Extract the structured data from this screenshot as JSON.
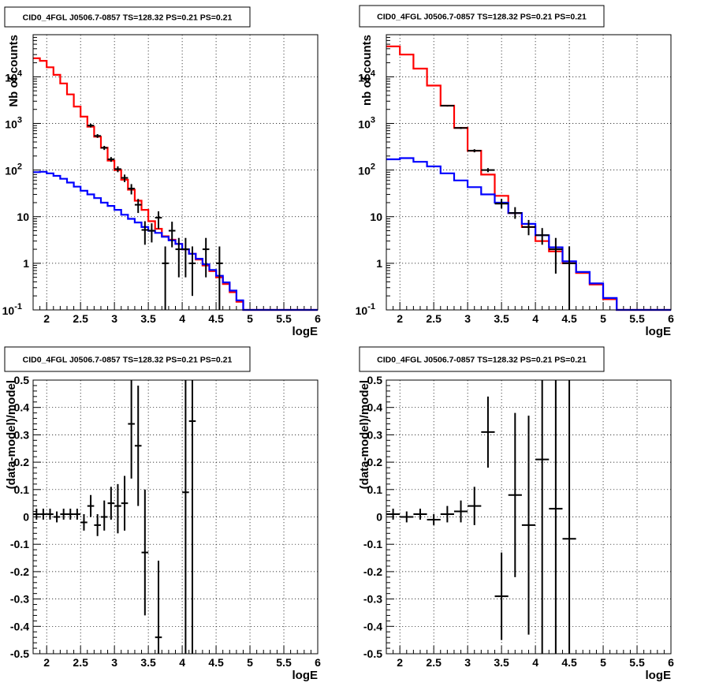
{
  "chart_data": [
    {
      "type": "line",
      "title": "CID0_4FGL J0506.7-0857 TS=128.32 PS=0.21 PS=0.21",
      "xlabel": "logE",
      "ylabel": "Nb of counts",
      "xlim": [
        1.8,
        6.0
      ],
      "ylim": [
        0.1,
        80000
      ],
      "yscale": "log",
      "grid": true,
      "xticks": [
        "2",
        "2.5",
        "3",
        "3.5",
        "4",
        "4.5",
        "5",
        "5.5",
        "6"
      ],
      "yticks": [
        "10^{-1}",
        "1",
        "10",
        "10^{2}",
        "10^{3}",
        "10^{4}"
      ],
      "series": [
        {
          "kind": "step",
          "color": "#ff0000",
          "edges": [
            1.8,
            1.9,
            2.0,
            2.1,
            2.2,
            2.3,
            2.4,
            2.5,
            2.6,
            2.7,
            2.8,
            2.9,
            3.0,
            3.1,
            3.2,
            3.3,
            3.4,
            3.5,
            3.6,
            3.7,
            3.8,
            3.9,
            4.0,
            4.1,
            4.2,
            4.3,
            4.4,
            4.5,
            4.6,
            4.7,
            4.8,
            4.9,
            5.0,
            5.1,
            5.2,
            5.3,
            5.4,
            5.5,
            5.6,
            5.7,
            5.8,
            5.9,
            6.0
          ],
          "values": [
            25000,
            22000,
            16000,
            11000,
            7200,
            4200,
            2300,
            1400,
            850,
            520,
            300,
            160,
            100,
            62,
            38,
            22,
            14,
            8,
            5.5,
            3.8,
            3.2,
            2.6,
            2.0,
            1.6,
            1.2,
            0.9,
            0.68,
            0.5,
            0.36,
            0.24,
            0.15,
            0.1,
            0.1,
            0.1,
            0.1,
            0.1,
            0.1,
            0.1,
            0.1,
            0.1,
            0.1,
            0.1
          ]
        },
        {
          "kind": "step",
          "color": "#0000ff",
          "edges": [
            1.8,
            1.9,
            2.0,
            2.1,
            2.2,
            2.3,
            2.4,
            2.5,
            2.6,
            2.7,
            2.8,
            2.9,
            3.0,
            3.1,
            3.2,
            3.3,
            3.4,
            3.5,
            3.6,
            3.7,
            3.8,
            3.9,
            4.0,
            4.1,
            4.2,
            4.3,
            4.4,
            4.5,
            4.6,
            4.7,
            4.8,
            4.9,
            5.0,
            5.1,
            5.2,
            5.3,
            5.4,
            5.5,
            5.6,
            5.7,
            5.8,
            5.9,
            6.0
          ],
          "values": [
            90,
            92,
            85,
            75,
            65,
            54,
            44,
            36,
            30,
            25,
            20,
            17,
            14,
            11,
            9,
            7.5,
            6,
            5,
            4.5,
            3.7,
            3.1,
            2.6,
            2.0,
            1.6,
            1.25,
            0.95,
            0.72,
            0.54,
            0.39,
            0.26,
            0.16,
            0.1,
            0.1,
            0.1,
            0.1,
            0.1,
            0.1,
            0.1,
            0.1,
            0.1,
            0.1,
            0.1
          ]
        },
        {
          "kind": "points",
          "color": "#000000",
          "x": [
            2.65,
            2.75,
            2.85,
            2.95,
            3.05,
            3.15,
            3.25,
            3.35,
            3.45,
            3.55,
            3.65,
            3.75,
            3.85,
            3.95,
            4.05,
            4.15,
            4.35,
            4.55
          ],
          "xerr": 0.05,
          "y": [
            900,
            540,
            300,
            170,
            105,
            68,
            40,
            18,
            5.2,
            5.0,
            9.5,
            1.0,
            5.0,
            2.0,
            2.0,
            1.0,
            2.0,
            1.0
          ],
          "ylo": [
            820,
            490,
            270,
            150,
            90,
            55,
            30,
            12,
            2.5,
            2.8,
            5.5,
            0.1,
            2.2,
            0.5,
            0.5,
            0.2,
            0.5,
            0.1
          ],
          "yhi": [
            980,
            590,
            330,
            190,
            120,
            80,
            50,
            24,
            8,
            7.2,
            13,
            2.3,
            7.8,
            3.5,
            3.5,
            2.3,
            3.5,
            2.3
          ]
        }
      ]
    },
    {
      "type": "line",
      "title": "CID0_4FGL J0506.7-0857 TS=128.32 PS=0.21 PS=0.21",
      "xlabel": "logE",
      "ylabel": "nb of counts",
      "xlim": [
        1.8,
        6.0
      ],
      "ylim": [
        0.1,
        80000
      ],
      "yscale": "log",
      "grid": true,
      "xticks": [
        "2",
        "2.5",
        "3",
        "3.5",
        "4",
        "4.5",
        "5",
        "5.5",
        "6"
      ],
      "yticks": [
        "10^{-1}",
        "1",
        "10",
        "10^{2}",
        "10^{3}",
        "10^{4}"
      ],
      "series": [
        {
          "kind": "step",
          "color": "#ff0000",
          "edges": [
            1.8,
            2.0,
            2.2,
            2.4,
            2.6,
            2.8,
            3.0,
            3.2,
            3.4,
            3.6,
            3.8,
            4.0,
            4.2,
            4.4,
            4.6,
            4.8,
            5.0,
            5.2,
            5.4,
            5.6,
            5.8,
            6.0
          ],
          "values": [
            45000,
            30000,
            15000,
            6500,
            2400,
            800,
            260,
            80,
            28,
            12,
            6,
            3,
            1.8,
            1.0,
            0.62,
            0.35,
            0.17,
            0.1,
            0.1,
            0.1,
            0.1
          ],
          "ylabel_unused": ""
        },
        {
          "kind": "step",
          "color": "#0000ff",
          "edges": [
            1.8,
            2.0,
            2.2,
            2.4,
            2.6,
            2.8,
            3.0,
            3.2,
            3.4,
            3.6,
            3.8,
            4.0,
            4.2,
            4.4,
            4.6,
            4.8,
            5.0,
            5.2,
            5.4,
            5.6,
            5.8,
            6.0
          ],
          "values": [
            170,
            180,
            150,
            120,
            85,
            60,
            43,
            30,
            20,
            12,
            7,
            4,
            2.2,
            1.1,
            0.65,
            0.37,
            0.18,
            0.1,
            0.1,
            0.1,
            0.1
          ]
        },
        {
          "kind": "points",
          "color": "#000000",
          "x": [
            2.7,
            2.9,
            3.1,
            3.3,
            3.5,
            3.7,
            3.9,
            4.1,
            4.3,
            4.5
          ],
          "xerr": 0.1,
          "y": [
            2400,
            800,
            260,
            100,
            19,
            12,
            6,
            4,
            2,
            1.0
          ],
          "ylo": [
            2300,
            760,
            240,
            90,
            15,
            9,
            4,
            2.5,
            0.6,
            0.1
          ],
          "yhi": [
            2500,
            840,
            280,
            110,
            24,
            16,
            8.5,
            5.7,
            3.5,
            2.3
          ]
        }
      ]
    },
    {
      "type": "scatter",
      "title": "CID0_4FGL J0506.7-0857 TS=128.32 PS=0.21 PS=0.21",
      "xlabel": "logE",
      "ylabel": "(data-model)/model",
      "xlim": [
        1.8,
        6.0
      ],
      "ylim": [
        -0.5,
        0.5
      ],
      "grid": true,
      "xticks": [
        "2",
        "2.5",
        "3",
        "3.5",
        "4",
        "4.5",
        "5",
        "5.5",
        "6"
      ],
      "yticks": [
        "-0.5",
        "-0.4",
        "-0.3",
        "-0.2",
        "-0.1",
        "0",
        "0.1",
        "0.2",
        "0.3",
        "0.4",
        "0.5"
      ],
      "series": [
        {
          "kind": "points",
          "color": "#000000",
          "x": [
            1.85,
            1.95,
            2.05,
            2.15,
            2.25,
            2.35,
            2.45,
            2.55,
            2.65,
            2.75,
            2.85,
            2.95,
            3.05,
            3.15,
            3.25,
            3.35,
            3.45,
            3.65,
            4.05,
            4.15
          ],
          "xerr": 0.05,
          "y": [
            0.01,
            0.01,
            0.01,
            0.0,
            0.01,
            0.01,
            0.01,
            -0.02,
            0.04,
            -0.03,
            0.0,
            0.05,
            0.04,
            0.05,
            0.34,
            0.26,
            -0.13,
            -0.44,
            0.09,
            0.35
          ],
          "ylo": [
            -0.01,
            -0.01,
            -0.01,
            -0.02,
            -0.01,
            -0.01,
            -0.01,
            -0.05,
            0.0,
            -0.07,
            -0.05,
            -0.01,
            -0.06,
            -0.05,
            0.14,
            0.04,
            -0.36,
            -0.72,
            -0.6,
            -0.6
          ],
          "yhi": [
            0.03,
            0.03,
            0.03,
            0.02,
            0.03,
            0.03,
            0.03,
            0.01,
            0.08,
            0.01,
            0.06,
            0.11,
            0.12,
            0.15,
            0.55,
            0.48,
            0.1,
            -0.16,
            0.6,
            0.6
          ]
        }
      ]
    },
    {
      "type": "scatter",
      "title": "CID0_4FGL J0506.7-0857 TS=128.32 PS=0.21 PS=0.21",
      "xlabel": "logE",
      "ylabel": "(data-model)/model",
      "xlim": [
        1.8,
        6.0
      ],
      "ylim": [
        -0.5,
        0.5
      ],
      "grid": true,
      "xticks": [
        "2",
        "2.5",
        "3",
        "3.5",
        "4",
        "4.5",
        "5",
        "5.5",
        "6"
      ],
      "yticks": [
        "-0.5",
        "-0.4",
        "-0.3",
        "-0.2",
        "-0.1",
        "0",
        "0.1",
        "0.2",
        "0.3",
        "0.4",
        "0.5"
      ],
      "series": [
        {
          "kind": "points",
          "color": "#000000",
          "x": [
            1.9,
            2.1,
            2.3,
            2.5,
            2.7,
            2.9,
            3.1,
            3.3,
            3.5,
            3.7,
            3.9,
            4.1,
            4.3,
            4.5
          ],
          "xerr": 0.1,
          "y": [
            0.01,
            0.0,
            0.01,
            -0.01,
            0.01,
            0.02,
            0.04,
            0.31,
            -0.29,
            0.08,
            -0.03,
            0.21,
            0.03,
            -0.08
          ],
          "ylo": [
            -0.01,
            -0.02,
            -0.01,
            -0.03,
            -0.02,
            -0.02,
            -0.03,
            0.18,
            -0.45,
            -0.22,
            -0.43,
            -0.6,
            -0.6,
            -0.6
          ],
          "yhi": [
            0.03,
            0.02,
            0.03,
            0.01,
            0.04,
            0.06,
            0.11,
            0.44,
            -0.13,
            0.38,
            0.37,
            0.6,
            0.6,
            0.6
          ]
        }
      ]
    }
  ]
}
